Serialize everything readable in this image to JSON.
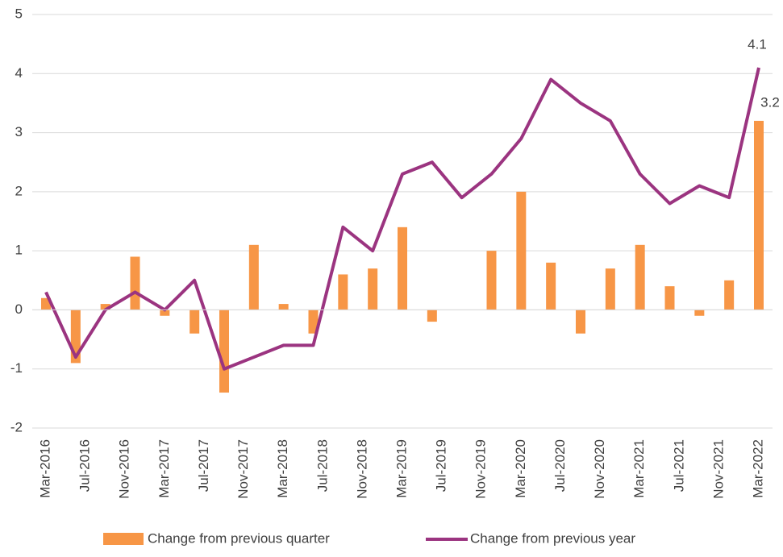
{
  "chart_data": {
    "type": "bar_line",
    "x": [
      "2016-03",
      "2016-06",
      "2016-09",
      "2016-12",
      "2017-03",
      "2017-06",
      "2017-09",
      "2017-12",
      "2018-03",
      "2018-06",
      "2018-09",
      "2018-12",
      "2019-03",
      "2019-06",
      "2019-09",
      "2019-12",
      "2020-03",
      "2020-06",
      "2020-09",
      "2020-12",
      "2021-03",
      "2021-06",
      "2021-09",
      "2021-12",
      "2022-03"
    ],
    "series": [
      {
        "name": "Change from previous quarter",
        "type": "bar",
        "color": "#f79646",
        "values": [
          0.2,
          -0.9,
          0.1,
          0.9,
          -0.1,
          -0.4,
          -1.4,
          1.1,
          0.1,
          -0.4,
          0.6,
          0.7,
          1.4,
          -0.2,
          0,
          1.0,
          2.0,
          0.8,
          -0.4,
          0.7,
          1.1,
          0.4,
          -0.1,
          0.5,
          3.2
        ]
      },
      {
        "name": "Change from previous year",
        "type": "line",
        "color": "#9b3480",
        "values": [
          0.3,
          -0.8,
          0.0,
          0.3,
          0.0,
          0.5,
          -1.0,
          -0.8,
          -0.6,
          -0.6,
          1.4,
          1.0,
          2.3,
          2.5,
          1.9,
          2.3,
          2.9,
          3.9,
          3.5,
          3.2,
          2.3,
          1.8,
          2.1,
          1.9,
          4.1
        ]
      }
    ],
    "xlim": [
      "2016-03",
      "2022-03"
    ],
    "xticks": [
      {
        "value": "2016-03",
        "label": "Mar-2016"
      },
      {
        "value": "2016-07",
        "label": "Jul-2016"
      },
      {
        "value": "2016-11",
        "label": "Nov-2016"
      },
      {
        "value": "2017-03",
        "label": "Mar-2017"
      },
      {
        "value": "2017-07",
        "label": "Jul-2017"
      },
      {
        "value": "2017-11",
        "label": "Nov-2017"
      },
      {
        "value": "2018-03",
        "label": "Mar-2018"
      },
      {
        "value": "2018-07",
        "label": "Jul-2018"
      },
      {
        "value": "2018-11",
        "label": "Nov-2018"
      },
      {
        "value": "2019-03",
        "label": "Mar-2019"
      },
      {
        "value": "2019-07",
        "label": "Jul-2019"
      },
      {
        "value": "2019-11",
        "label": "Nov-2019"
      },
      {
        "value": "2020-03",
        "label": "Mar-2020"
      },
      {
        "value": "2020-07",
        "label": "Jul-2020"
      },
      {
        "value": "2020-11",
        "label": "Nov-2020"
      },
      {
        "value": "2021-03",
        "label": "Mar-2021"
      },
      {
        "value": "2021-07",
        "label": "Jul-2021"
      },
      {
        "value": "2021-11",
        "label": "Nov-2021"
      },
      {
        "value": "2022-03",
        "label": "Mar-2022"
      }
    ],
    "ylim": [
      -2,
      5
    ],
    "yticks": [
      -2,
      -1,
      0,
      1,
      2,
      3,
      4,
      5
    ],
    "grid": true,
    "legend": "bottom"
  }
}
